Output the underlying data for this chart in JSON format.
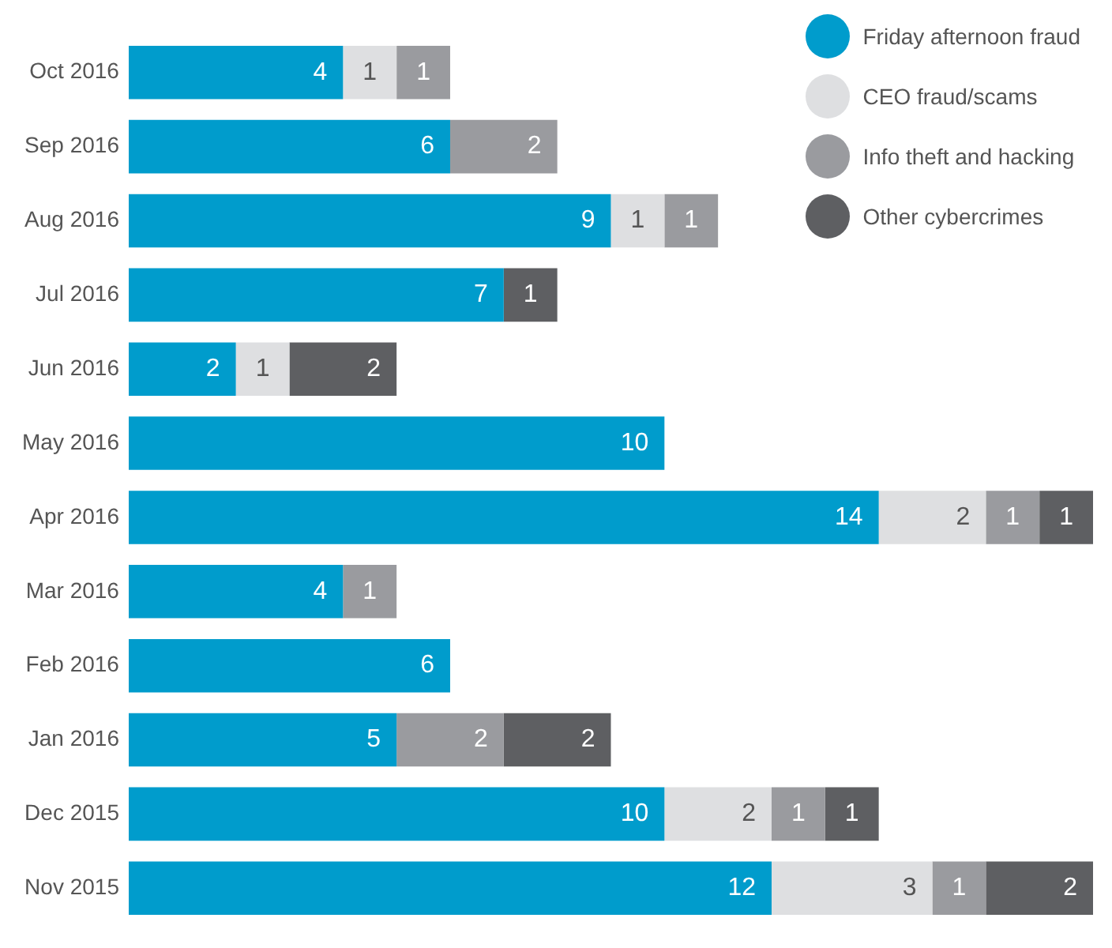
{
  "chart_data": {
    "type": "bar",
    "orientation": "horizontal",
    "stacked": true,
    "data_labels": true,
    "grid": false,
    "legend": "top right",
    "tick_labels": "y",
    "marker": "circle",
    "categories": [
      "Oct 2016",
      "Sep 2016",
      "Aug 2016",
      "Jul 2016",
      "Jun 2016",
      "May 2016",
      "Apr 2016",
      "Mar 2016",
      "Feb 2016",
      "Jan 2016",
      "Dec 2015",
      "Nov 2015"
    ],
    "series": [
      {
        "name": "Friday afternoon fraud",
        "color": "#009ccc",
        "values": [
          4,
          6,
          9,
          7,
          2,
          10,
          14,
          4,
          6,
          5,
          10,
          12
        ]
      },
      {
        "name": "CEO fraud/scams",
        "color": "#dedfe1",
        "values": [
          1,
          null,
          1,
          null,
          1,
          null,
          2,
          null,
          null,
          null,
          2,
          3
        ]
      },
      {
        "name": "Info theft and hacking",
        "color": "#9a9b9f",
        "values": [
          1,
          2,
          1,
          null,
          null,
          null,
          1,
          1,
          null,
          2,
          1,
          1
        ]
      },
      {
        "name": "Other cybercrimes",
        "color": "#5e5f62",
        "values": [
          null,
          null,
          null,
          1,
          2,
          null,
          1,
          null,
          null,
          2,
          1,
          2
        ]
      }
    ]
  }
}
